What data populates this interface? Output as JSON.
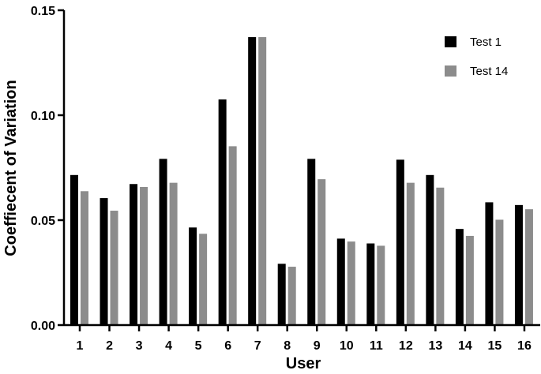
{
  "chart_data": {
    "type": "bar",
    "xlabel": "User",
    "ylabel": "Coeffiecent of Variation",
    "ylim": [
      0,
      0.15
    ],
    "yticks": [
      "0.00",
      "0.05",
      "0.10",
      "0.15"
    ],
    "categories": [
      "1",
      "2",
      "3",
      "4",
      "5",
      "6",
      "7",
      "8",
      "9",
      "10",
      "11",
      "12",
      "13",
      "14",
      "15",
      "16"
    ],
    "legend_position": "top-right",
    "grid": false,
    "series": [
      {
        "name": "Test 1",
        "color": "#000000",
        "values": [
          0.0715,
          0.0605,
          0.0672,
          0.0792,
          0.0465,
          0.1075,
          0.1372,
          0.0292,
          0.0792,
          0.0412,
          0.0389,
          0.0788,
          0.0715,
          0.0458,
          0.0585,
          0.0572
        ]
      },
      {
        "name": "Test 14",
        "color": "#8c8c8c",
        "values": [
          0.0638,
          0.0545,
          0.0658,
          0.0678,
          0.0435,
          0.0852,
          0.1372,
          0.0278,
          0.0695,
          0.0398,
          0.0378,
          0.0678,
          0.0655,
          0.0425,
          0.0502,
          0.0552
        ]
      }
    ]
  }
}
